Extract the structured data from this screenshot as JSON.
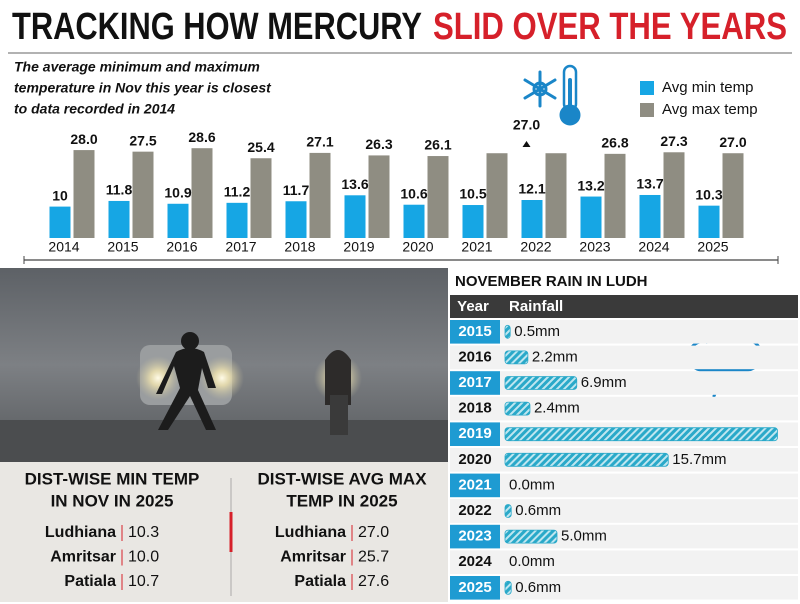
{
  "title": {
    "left": "TRACKING HOW MERCURY",
    "right": "SLID OVER THE YEARS"
  },
  "chart_data": [
    {
      "type": "bar",
      "subtitle": [
        "The average minimum and maximum",
        "temperature in Nov this year is closest",
        "to data recorded in 2014"
      ],
      "categories": [
        "2014",
        "2015",
        "2016",
        "2017",
        "2018",
        "2019",
        "2020",
        "2021",
        "2022",
        "2023",
        "2024",
        "2025"
      ],
      "series": [
        {
          "name": "Avg min temp",
          "color": "#16a6e4",
          "values": [
            10,
            11.8,
            10.9,
            11.2,
            11.7,
            13.6,
            10.6,
            10.5,
            12.1,
            13.2,
            13.7,
            10.3
          ]
        },
        {
          "name": "Avg max temp",
          "color": "#8f8d82",
          "values": [
            28.0,
            27.5,
            28.6,
            25.4,
            27.1,
            26.3,
            26.1,
            27.0,
            27.0,
            26.8,
            27.3,
            27.0
          ],
          "value_labels": [
            "28.0",
            "27.5",
            "28.6",
            "25.4",
            "27.1",
            "26.3",
            "26.1",
            null,
            null,
            "26.8",
            "27.3",
            "27.0"
          ]
        }
      ],
      "annotation": "27.0",
      "legend": "upper right"
    },
    {
      "type": "bar",
      "orientation": "horizontal",
      "title": "NOVEMBER RAIN IN LUDH",
      "header": [
        "Year",
        "Rainfall"
      ],
      "categories": [
        "2015",
        "2016",
        "2017",
        "2018",
        "2019",
        "2020",
        "2021",
        "2022",
        "2023",
        "2024",
        "2025"
      ],
      "values": [
        0.5,
        2.2,
        6.9,
        2.4,
        26.2,
        15.7,
        0.0,
        0.6,
        5.0,
        0.0,
        0.6
      ],
      "value_labels": [
        "0.5mm",
        "2.2mm",
        "6.9mm",
        "2.4mm",
        null,
        "15.7mm",
        "0.0mm",
        "0.6mm",
        "5.0mm",
        "0.0mm",
        "0.6mm"
      ],
      "color": "#2aa9c9"
    }
  ],
  "districts": [
    {
      "title": [
        "DIST-WISE MIN TEMP",
        "IN NOV IN 2025"
      ],
      "rows": [
        {
          "name": "Ludhiana",
          "value": "10.3"
        },
        {
          "name": "Amritsar",
          "value": "10.0"
        },
        {
          "name": "Patiala",
          "value": "10.7"
        }
      ]
    },
    {
      "title": [
        "DIST-WISE AVG MAX",
        "TEMP IN 2025"
      ],
      "rows": [
        {
          "name": "Ludhiana",
          "value": "27.0"
        },
        {
          "name": "Amritsar",
          "value": "25.7"
        },
        {
          "name": "Patiala",
          "value": "27.6"
        }
      ]
    }
  ]
}
